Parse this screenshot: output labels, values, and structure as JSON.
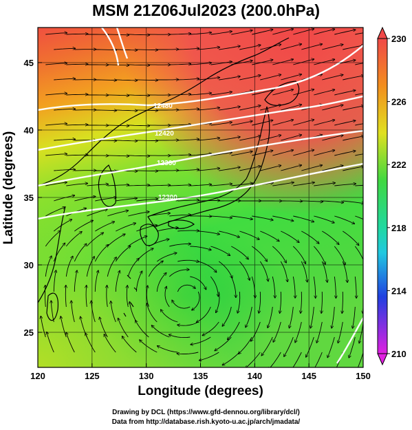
{
  "title": "MSM 21Z06Jul2023 (200.0hPa)",
  "x_axis": {
    "label": "Longitude (degrees)",
    "range": [
      120,
      150
    ],
    "ticks": [
      {
        "value": 120,
        "label": "120"
      },
      {
        "value": 125,
        "label": "125"
      },
      {
        "value": 130,
        "label": "130"
      },
      {
        "value": 135,
        "label": "135"
      },
      {
        "value": 140,
        "label": "140"
      },
      {
        "value": 145,
        "label": "145"
      },
      {
        "value": 150,
        "label": "150"
      }
    ]
  },
  "y_axis": {
    "label": "Latitude  (degrees)",
    "range": [
      22.4,
      47.6
    ],
    "ticks": [
      {
        "value": 25,
        "label": "25"
      },
      {
        "value": 30,
        "label": "30"
      },
      {
        "value": 35,
        "label": "35"
      },
      {
        "value": 40,
        "label": "40"
      },
      {
        "value": 45,
        "label": "45"
      }
    ]
  },
  "colorbar": {
    "range": [
      210,
      230
    ],
    "tick_labels": [
      {
        "value": 230,
        "label": "230"
      },
      {
        "value": 226,
        "label": "226"
      },
      {
        "value": 222,
        "label": "222"
      },
      {
        "value": 218,
        "label": "218"
      },
      {
        "value": 214,
        "label": "214"
      },
      {
        "value": 210,
        "label": "210"
      }
    ]
  },
  "contours": [
    {
      "value": 12300,
      "label": "12300"
    },
    {
      "value": 12360,
      "label": "12360"
    },
    {
      "value": 12420,
      "label": "12420"
    },
    {
      "value": 12480,
      "label": "12480"
    }
  ],
  "colors": {
    "warm": "#f04040",
    "orange": "#f28e1e",
    "yellow": "#e0e020",
    "green": "#30d840",
    "cyan": "#20d8d0",
    "blue": "#2040e0",
    "magenta": "#e020e0",
    "contour": "#ffffff",
    "grid": "#000000"
  },
  "credits": {
    "line1": "Drawing by DCL (https://www.gfd-dennou.org/library/dcl/)",
    "line2": "Data from http://database.rish.kyoto-u.ac.jp/arch/jmadata/"
  }
}
